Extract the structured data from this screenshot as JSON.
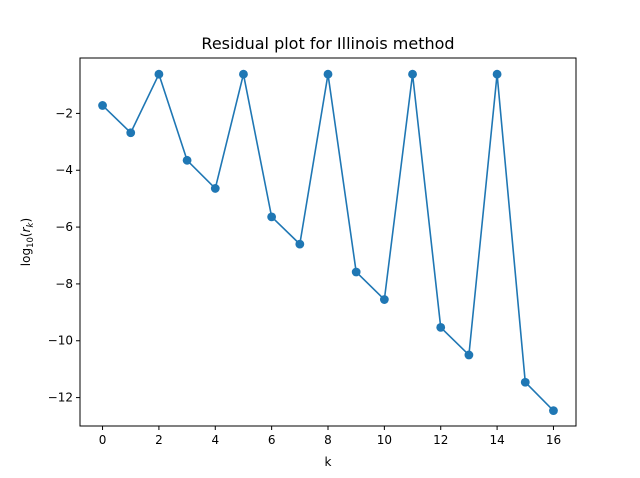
{
  "chart_data": {
    "type": "line",
    "title": "Residual plot for Illinois method",
    "xlabel": "k",
    "ylabel": {
      "prefix": "log",
      "subscript": "10",
      "argument_open": "(",
      "argument": "r",
      "argument_subscript": "k",
      "argument_close": ")"
    },
    "xlim": [
      -0.8,
      16.8
    ],
    "ylim": [
      -13.0,
      -0.05
    ],
    "xticks": [
      0,
      2,
      4,
      6,
      8,
      10,
      12,
      14,
      16
    ],
    "yticks": [
      -2,
      -4,
      -6,
      -8,
      -10,
      -12
    ],
    "xtick_labels": [
      "0",
      "2",
      "4",
      "6",
      "8",
      "10",
      "12",
      "14",
      "16"
    ],
    "ytick_labels": [
      "−2",
      "−4",
      "−6",
      "−8",
      "−10",
      "−12"
    ],
    "grid": false,
    "legend": null,
    "series": [
      {
        "color": "#1f77b4",
        "marker": "circle",
        "x": [
          0,
          1,
          2,
          3,
          4,
          5,
          6,
          7,
          8,
          9,
          10,
          11,
          12,
          13,
          14,
          15,
          16
        ],
        "y": [
          -1.72,
          -2.68,
          -0.62,
          -3.65,
          -4.64,
          -0.62,
          -5.64,
          -6.6,
          -0.62,
          -7.58,
          -8.55,
          -0.62,
          -9.53,
          -10.5,
          -0.62,
          -11.46,
          -12.46
        ]
      }
    ]
  }
}
